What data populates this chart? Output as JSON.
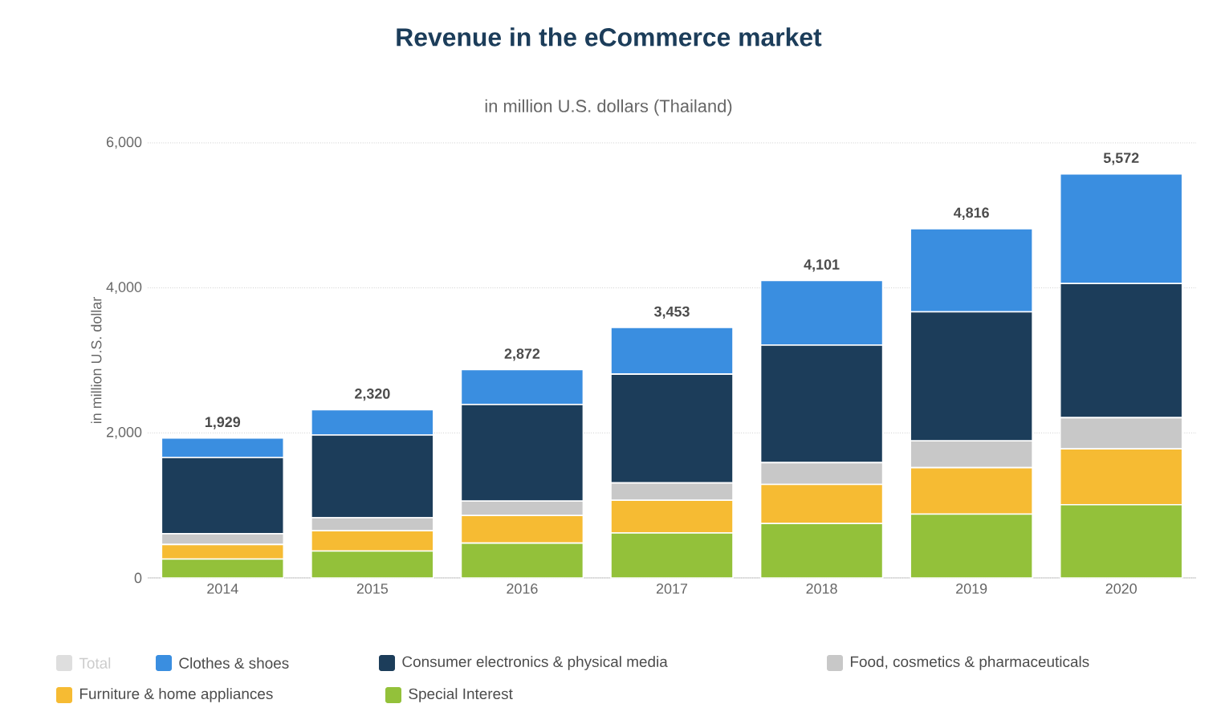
{
  "chart_data": {
    "type": "bar",
    "title": "Revenue in the eCommerce market",
    "subtitle": "in million U.S. dollars (Thailand)",
    "ylabel": "in million U.S. dollar",
    "categories": [
      "2014",
      "2015",
      "2016",
      "2017",
      "2018",
      "2019",
      "2020"
    ],
    "stacked": true,
    "series": [
      {
        "name": "Special Interest",
        "color": "#93c13a",
        "values": [
          260,
          370,
          480,
          620,
          750,
          880,
          1010
        ]
      },
      {
        "name": "Furniture & home appliances",
        "color": "#f6bb33",
        "values": [
          200,
          280,
          380,
          450,
          540,
          640,
          770
        ]
      },
      {
        "name": "Food, cosmetics & pharmaceuticals",
        "color": "#c8c8c8",
        "values": [
          150,
          180,
          200,
          240,
          300,
          370,
          430
        ]
      },
      {
        "name": "Consumer electronics & physical media",
        "color": "#1c3d5a",
        "values": [
          1050,
          1140,
          1330,
          1500,
          1620,
          1780,
          1850
        ]
      },
      {
        "name": "Clothes & shoes",
        "color": "#3a8ee0",
        "values": [
          269,
          350,
          482,
          643,
          891,
          1146,
          1512
        ]
      },
      {
        "name": "Total",
        "color": "#dedede",
        "values": [
          null,
          null,
          null,
          null,
          null,
          null,
          null
        ]
      }
    ],
    "totals": [
      "1,929",
      "2,320",
      "2,872",
      "3,453",
      "4,101",
      "4,816",
      "5,572"
    ],
    "ylim": [
      0,
      6000
    ],
    "yticks": [
      {
        "value": 0,
        "label": "0"
      },
      {
        "value": 2000,
        "label": "2,000"
      },
      {
        "value": 4000,
        "label": "4,000"
      },
      {
        "value": 6000,
        "label": "6,000"
      }
    ],
    "grid": "y",
    "legend": "bottom"
  }
}
